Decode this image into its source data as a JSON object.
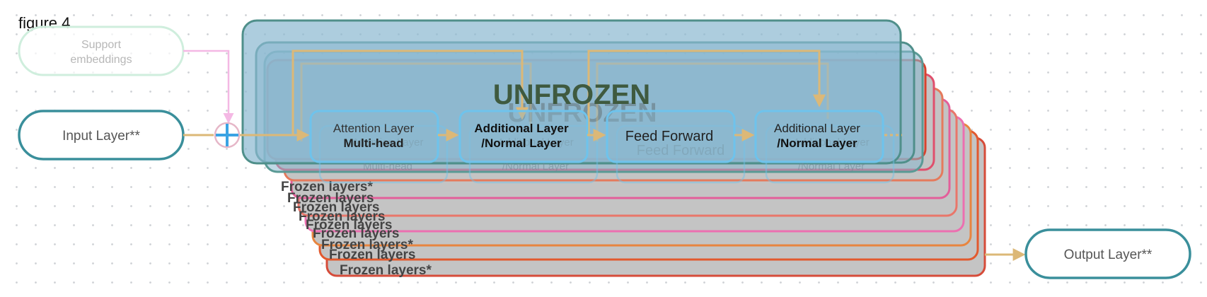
{
  "figure_label": "figure 4",
  "support_embeddings": {
    "line1": "Support",
    "line2": "embeddings"
  },
  "input_layer": "Input Layer**",
  "output_layer": "Output Layer**",
  "unfrozen_label": "UNFROZEN",
  "blocks": {
    "attention": {
      "line1": "Attention Layer",
      "line2": "Multi-head"
    },
    "add_norm_1": {
      "line1": "Additional Layer",
      "line2": "/Normal Layer"
    },
    "feed_forward": {
      "line1": "Feed Forward"
    },
    "add_norm_2": {
      "line1": "Additional Layer",
      "line2": "/Normal Layer"
    }
  },
  "frozen_labels": [
    "Frozen layers*",
    "Frozen layers",
    "Frozen layers",
    "Frozen layers",
    "Frozen layers",
    "Frozen layers",
    "Frozen layers*",
    "Frozen layers",
    "Frozen layers*"
  ],
  "colors": {
    "arrow": "#dcb877",
    "support_arrow": "#f4b8e4",
    "input_border": "#3a8f9b",
    "support_border": "#cfeedd",
    "unfrozen_fill": "#8ab8d0",
    "unfrozen_border": "#4f8f8a",
    "block_border": "#6ec3ec",
    "frozen_fill": "#c4c4c4",
    "frozen_borders": [
      "#d8422e",
      "#e04f6c",
      "#e57a5c",
      "#e35f9a",
      "#e9766a",
      "#ec6fb0",
      "#e8853f",
      "#e2592e",
      "#d64c3a"
    ],
    "plus": "#3aa3e3"
  }
}
